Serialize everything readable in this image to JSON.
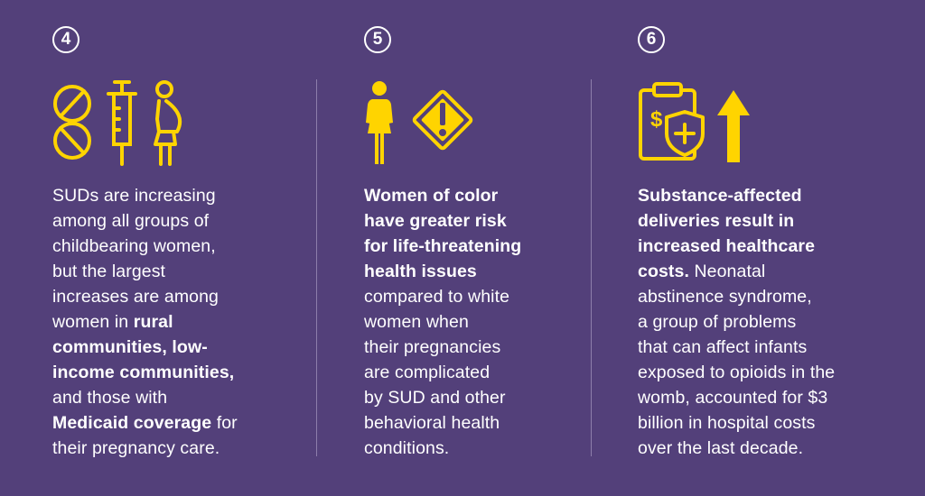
{
  "columns": [
    {
      "number": "4",
      "icons": [
        "pills-icon",
        "syringe-icon",
        "pregnant-woman-icon"
      ],
      "lines": [
        [
          {
            "t": "SUDs are increasing",
            "b": false
          }
        ],
        [
          {
            "t": "among all groups of",
            "b": false
          }
        ],
        [
          {
            "t": "childbearing women,",
            "b": false
          }
        ],
        [
          {
            "t": "but the largest",
            "b": false
          }
        ],
        [
          {
            "t": "increases are among",
            "b": false
          }
        ],
        [
          {
            "t": "women in ",
            "b": false
          },
          {
            "t": "rural",
            "b": true
          }
        ],
        [
          {
            "t": "communities, low-",
            "b": true
          }
        ],
        [
          {
            "t": "income communities,",
            "b": true
          }
        ],
        [
          {
            "t": "and those with",
            "b": false
          }
        ],
        [
          {
            "t": "Medicaid coverage",
            "b": true
          },
          {
            "t": " for",
            "b": false
          }
        ],
        [
          {
            "t": "their pregnancy care.",
            "b": false
          }
        ]
      ]
    },
    {
      "number": "5",
      "icons": [
        "woman-icon",
        "warning-sign-icon"
      ],
      "lines": [
        [
          {
            "t": "Women of color",
            "b": true
          }
        ],
        [
          {
            "t": "have greater risk",
            "b": true
          }
        ],
        [
          {
            "t": "for life-threatening",
            "b": true
          }
        ],
        [
          {
            "t": "health issues",
            "b": true
          }
        ],
        [
          {
            "t": "compared to white",
            "b": false
          }
        ],
        [
          {
            "t": "women when",
            "b": false
          }
        ],
        [
          {
            "t": "their pregnancies",
            "b": false
          }
        ],
        [
          {
            "t": "are complicated",
            "b": false
          }
        ],
        [
          {
            "t": "by SUD and other",
            "b": false
          }
        ],
        [
          {
            "t": "behavioral health",
            "b": false
          }
        ],
        [
          {
            "t": "conditions.",
            "b": false
          }
        ]
      ]
    },
    {
      "number": "6",
      "icons": [
        "clipboard-cost-icon",
        "arrow-up-icon"
      ],
      "lines": [
        [
          {
            "t": "Substance-affected",
            "b": true
          }
        ],
        [
          {
            "t": "deliveries result in",
            "b": true
          }
        ],
        [
          {
            "t": "increased healthcare",
            "b": true
          }
        ],
        [
          {
            "t": "costs.",
            "b": true
          },
          {
            "t": " Neonatal",
            "b": false
          }
        ],
        [
          {
            "t": "abstinence syndrome,",
            "b": false
          }
        ],
        [
          {
            "t": "a group of problems",
            "b": false
          }
        ],
        [
          {
            "t": "that can affect infants",
            "b": false
          }
        ],
        [
          {
            "t": "exposed to opioids in the",
            "b": false
          }
        ],
        [
          {
            "t": "womb, accounted for $3",
            "b": false
          }
        ],
        [
          {
            "t": "billion in hospital costs",
            "b": false
          }
        ],
        [
          {
            "t": "over the last decade.",
            "b": false
          }
        ]
      ]
    }
  ],
  "colors": {
    "background": "#53407a",
    "icon": "#ffd400",
    "text": "#ffffff",
    "divider": "#8d7eab"
  }
}
